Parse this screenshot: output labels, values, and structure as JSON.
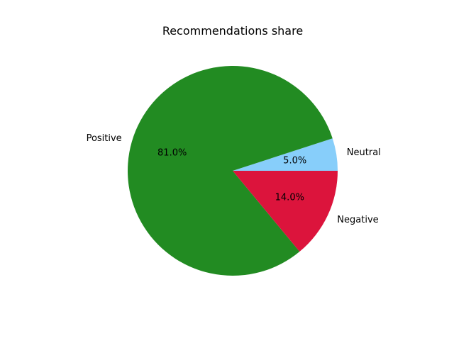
{
  "chart_data": {
    "type": "pie",
    "title": "Recommendations share",
    "slices": [
      {
        "label": "Neutral",
        "value": 5.0,
        "pct_label": "5.0%",
        "color": "#87cefa"
      },
      {
        "label": "Positive",
        "value": 81.0,
        "pct_label": "81.0%",
        "color": "#228b22"
      },
      {
        "label": "Negative",
        "value": 14.0,
        "pct_label": "14.0%",
        "color": "#dc143c"
      }
    ],
    "legend": "none"
  }
}
